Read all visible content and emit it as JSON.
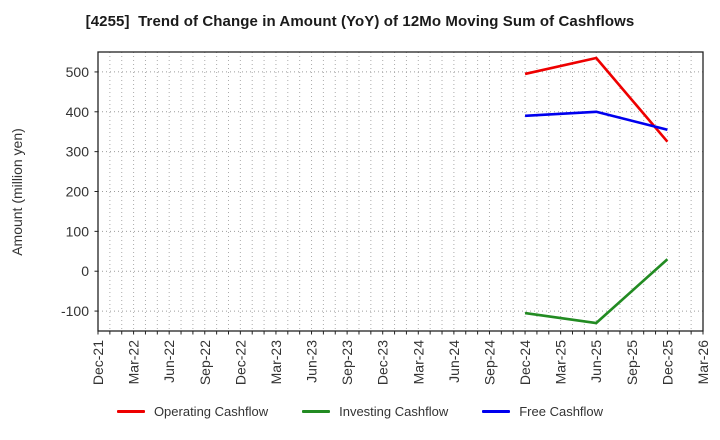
{
  "chart_data": {
    "type": "line",
    "title": "[4255]  Trend of Change in Amount (YoY) of 12Mo Moving Sum of Cashflows",
    "ylabel": "Amount (million yen)",
    "x_labels": [
      "Dec-21",
      "Mar-22",
      "Jun-22",
      "Sep-22",
      "Dec-22",
      "Mar-23",
      "Jun-23",
      "Sep-23",
      "Dec-23",
      "Mar-24",
      "Jun-24",
      "Sep-24",
      "Dec-24",
      "Mar-25",
      "Jun-25",
      "Sep-25",
      "Dec-25",
      "Mar-26"
    ],
    "ylim": [
      -150,
      550
    ],
    "yticks": [
      -100,
      0,
      100,
      200,
      300,
      400,
      500
    ],
    "grid": {
      "horizontal_major": true,
      "vertical_minor_per_quarter": 3,
      "style": "dotted"
    },
    "legend_position": "bottom",
    "series": [
      {
        "name": "Operating Cashflow",
        "color": "#ee0000",
        "values": [
          null,
          null,
          null,
          null,
          null,
          null,
          null,
          null,
          null,
          null,
          null,
          null,
          495,
          null,
          535,
          null,
          325,
          null
        ]
      },
      {
        "name": "Investing Cashflow",
        "color": "#228b22",
        "values": [
          null,
          null,
          null,
          null,
          null,
          null,
          null,
          null,
          null,
          null,
          null,
          null,
          -105,
          null,
          -130,
          null,
          30,
          null
        ]
      },
      {
        "name": "Free Cashflow",
        "color": "#0000ee",
        "values": [
          null,
          null,
          null,
          null,
          null,
          null,
          null,
          null,
          null,
          null,
          null,
          null,
          390,
          null,
          400,
          null,
          355,
          null
        ]
      }
    ]
  }
}
